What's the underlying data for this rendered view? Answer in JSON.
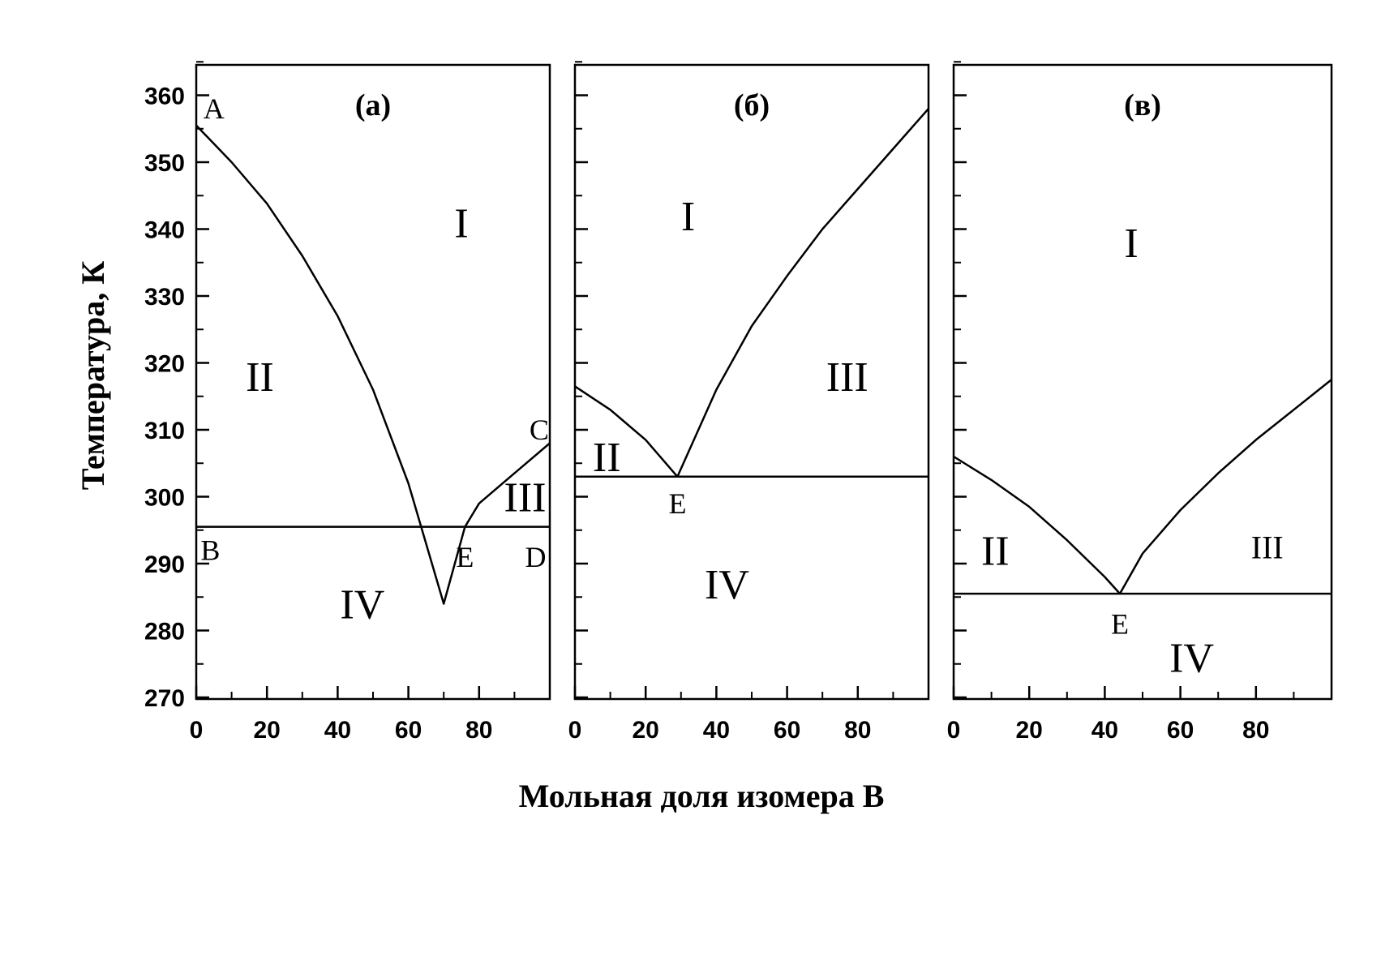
{
  "chart_data": [
    {
      "type": "line",
      "panel_label": "(а)",
      "xlim": [
        0,
        100
      ],
      "ylim": [
        270,
        365
      ],
      "x_ticks": [
        0,
        20,
        40,
        60,
        80
      ],
      "y_ticks": [
        270,
        280,
        290,
        300,
        310,
        320,
        330,
        340,
        350,
        360
      ],
      "series": [
        {
          "role": "liquidus-left",
          "x": [
            0,
            10,
            20,
            30,
            40,
            50,
            60,
            70,
            76
          ],
          "y": [
            355.5,
            350,
            343.8,
            336,
            327,
            316,
            302,
            284,
            295.5
          ]
        },
        {
          "role": "liquidus-right",
          "x": [
            76,
            80,
            90,
            100
          ],
          "y": [
            295.5,
            299,
            303.5,
            308
          ]
        },
        {
          "role": "eutectic",
          "x": [
            0,
            100
          ],
          "y": [
            295.5,
            295.5
          ]
        }
      ],
      "region_labels": [
        {
          "text": "I",
          "x": 75,
          "y": 341
        },
        {
          "text": "II",
          "x": 18,
          "y": 318
        },
        {
          "text": "III",
          "x": 93,
          "y": 300
        },
        {
          "text": "IV",
          "x": 47,
          "y": 284
        }
      ],
      "point_labels": [
        {
          "text": "A",
          "x": 5,
          "y": 358
        },
        {
          "text": "B",
          "x": 4,
          "y": 292
        },
        {
          "text": "C",
          "x": 97,
          "y": 310
        },
        {
          "text": "D",
          "x": 96,
          "y": 291
        },
        {
          "text": "E",
          "x": 76,
          "y": 291
        }
      ]
    },
    {
      "type": "line",
      "panel_label": "(б)",
      "xlim": [
        0,
        100
      ],
      "ylim": [
        270,
        365
      ],
      "x_ticks": [
        0,
        20,
        40,
        60,
        80
      ],
      "y_ticks": [
        270,
        280,
        290,
        300,
        310,
        320,
        330,
        340,
        350,
        360
      ],
      "series": [
        {
          "role": "liquidus-left",
          "x": [
            0,
            10,
            20,
            29
          ],
          "y": [
            316.5,
            313,
            308.5,
            303
          ]
        },
        {
          "role": "liquidus-right",
          "x": [
            29,
            40,
            50,
            60,
            70,
            80,
            90,
            100
          ],
          "y": [
            303,
            316,
            325.5,
            333,
            340,
            346,
            352,
            358
          ]
        },
        {
          "role": "eutectic",
          "x": [
            0,
            100
          ],
          "y": [
            303,
            303
          ]
        }
      ],
      "region_labels": [
        {
          "text": "I",
          "x": 32,
          "y": 342
        },
        {
          "text": "II",
          "x": 9,
          "y": 306
        },
        {
          "text": "III",
          "x": 77,
          "y": 318
        },
        {
          "text": "IV",
          "x": 43,
          "y": 287
        }
      ],
      "point_labels": [
        {
          "text": "E",
          "x": 29,
          "y": 299
        }
      ]
    },
    {
      "type": "line",
      "panel_label": "(в)",
      "xlim": [
        0,
        100
      ],
      "ylim": [
        270,
        365
      ],
      "x_ticks": [
        0,
        20,
        40,
        60,
        80
      ],
      "y_ticks": [
        270,
        280,
        290,
        300,
        310,
        320,
        330,
        340,
        350,
        360
      ],
      "series": [
        {
          "role": "liquidus-left",
          "x": [
            0,
            10,
            20,
            30,
            40,
            44
          ],
          "y": [
            306,
            302.5,
            298.5,
            293.5,
            288,
            285.5
          ]
        },
        {
          "role": "liquidus-right",
          "x": [
            44,
            50,
            60,
            70,
            80,
            90,
            100
          ],
          "y": [
            285.5,
            291.5,
            298,
            303.5,
            308.5,
            313,
            317.5
          ]
        },
        {
          "role": "eutectic",
          "x": [
            0,
            100
          ],
          "y": [
            285.5,
            285.5
          ]
        }
      ],
      "region_labels": [
        {
          "text": "I",
          "x": 47,
          "y": 338
        },
        {
          "text": "II",
          "x": 11,
          "y": 292
        },
        {
          "text": "III",
          "x": 83,
          "y": 293
        },
        {
          "text": "IV",
          "x": 63,
          "y": 276
        }
      ],
      "point_labels": [
        {
          "text": "E",
          "x": 44,
          "y": 281
        }
      ]
    }
  ],
  "ylabel": "Температура, К",
  "xlabel": "Мольная доля изомера В"
}
